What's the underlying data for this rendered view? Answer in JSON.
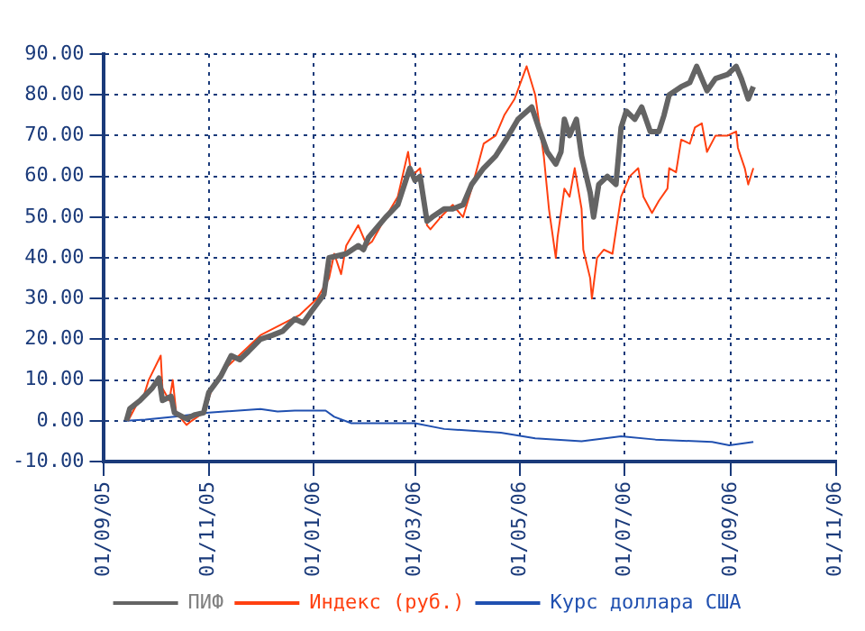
{
  "chart_data": {
    "type": "line",
    "series": [
      {
        "name": "ПИФ",
        "color": "#646464",
        "x": [
          "2005-09-14",
          "2005-09-16",
          "2005-09-22",
          "2005-09-29",
          "2005-10-03",
          "2005-10-05",
          "2005-10-10",
          "2005-10-12",
          "2005-10-19",
          "2005-10-24",
          "2005-10-29",
          "2005-11-01",
          "2005-11-08",
          "2005-11-14",
          "2005-11-19",
          "2005-11-24",
          "2005-12-01",
          "2005-12-08",
          "2005-12-14",
          "2005-12-21",
          "2005-12-26",
          "2005-12-31",
          "2006-01-07",
          "2006-01-10",
          "2006-01-20",
          "2006-01-27",
          "2006-01-30",
          "2006-02-02",
          "2006-02-12",
          "2006-02-19",
          "2006-02-26",
          "2006-03-01",
          "2006-03-04",
          "2006-03-08",
          "2006-03-11",
          "2006-03-18",
          "2006-03-23",
          "2006-03-29",
          "2006-04-03",
          "2006-04-10",
          "2006-04-17",
          "2006-04-23",
          "2006-04-30",
          "2006-05-08",
          "2006-05-12",
          "2006-05-17",
          "2006-05-22",
          "2006-05-25",
          "2006-05-27",
          "2006-05-30",
          "2006-06-03",
          "2006-06-06",
          "2006-06-11",
          "2006-06-13",
          "2006-06-16",
          "2006-06-21",
          "2006-06-26",
          "2006-06-29",
          "2006-07-02",
          "2006-07-07",
          "2006-07-11",
          "2006-07-16",
          "2006-07-21",
          "2006-07-24",
          "2006-07-27",
          "2006-08-03",
          "2006-08-08",
          "2006-08-12",
          "2006-08-18",
          "2006-08-23",
          "2006-08-30",
          "2006-09-04",
          "2006-09-07",
          "2006-09-11",
          "2006-09-14"
        ],
        "values": [
          0,
          3,
          5,
          8,
          10.5,
          5,
          6,
          2,
          0.5,
          1.5,
          2,
          7,
          11,
          16,
          15,
          17,
          20,
          21,
          22,
          25,
          24,
          27,
          31,
          40,
          41,
          43,
          42,
          45,
          50,
          53,
          62,
          59,
          60,
          49,
          50,
          52,
          52,
          53,
          58,
          62,
          65,
          69,
          74,
          77,
          72,
          66,
          63,
          66,
          74,
          70,
          74,
          65,
          56,
          50,
          58,
          60,
          58,
          72,
          76,
          74,
          77,
          71,
          71,
          75,
          80,
          82,
          83,
          87,
          81,
          84,
          85,
          87,
          84,
          79,
          82
        ]
      },
      {
        "name": "Индекс (руб.)",
        "color": "#ff4010",
        "x": [
          "2005-09-15",
          "2005-09-20",
          "2005-09-24",
          "2005-09-27",
          "2005-10-04",
          "2005-10-05",
          "2005-10-09",
          "2005-10-11",
          "2005-10-13",
          "2005-10-19",
          "2005-10-22",
          "2005-10-29",
          "2005-11-03",
          "2005-11-11",
          "2005-11-16",
          "2005-12-01",
          "2005-12-14",
          "2005-12-24",
          "2006-01-03",
          "2006-01-10",
          "2006-01-13",
          "2006-01-17",
          "2006-01-20",
          "2006-01-27",
          "2006-02-01",
          "2006-02-04",
          "2006-02-12",
          "2006-02-19",
          "2006-02-25",
          "2006-02-27",
          "2006-03-04",
          "2006-03-08",
          "2006-03-10",
          "2006-03-16",
          "2006-03-23",
          "2006-03-29",
          "2006-04-03",
          "2006-04-10",
          "2006-04-17",
          "2006-04-22",
          "2006-04-28",
          "2006-05-05",
          "2006-05-10",
          "2006-05-15",
          "2006-05-18",
          "2006-05-22",
          "2006-05-23",
          "2006-05-27",
          "2006-05-30",
          "2006-06-02",
          "2006-06-06",
          "2006-06-07",
          "2006-06-11",
          "2006-06-12",
          "2006-06-15",
          "2006-06-19",
          "2006-06-24",
          "2006-06-29",
          "2006-07-04",
          "2006-07-09",
          "2006-07-12",
          "2006-07-17",
          "2006-07-21",
          "2006-07-26",
          "2006-07-27",
          "2006-07-31",
          "2006-08-03",
          "2006-08-08",
          "2006-08-11",
          "2006-08-15",
          "2006-08-18",
          "2006-08-23",
          "2006-08-30",
          "2006-09-04",
          "2006-09-05",
          "2006-09-09",
          "2006-09-11",
          "2006-09-14"
        ],
        "values": [
          0,
          4,
          6,
          10,
          16,
          8,
          5,
          10,
          2,
          -1,
          0,
          2,
          8,
          13,
          15,
          21,
          null,
          26,
          30,
          35,
          41,
          36,
          43,
          48,
          43,
          44,
          50,
          55,
          66,
          60,
          62,
          48,
          47,
          50,
          53,
          50,
          57,
          68,
          70,
          75,
          79,
          87,
          80,
          65,
          52,
          40,
          45,
          57,
          55,
          62,
          52,
          42,
          35,
          30,
          40,
          42,
          41,
          55,
          60,
          62,
          55,
          51,
          54,
          57,
          62,
          61,
          69,
          68,
          72,
          73,
          66,
          70,
          70,
          71,
          67,
          62,
          58,
          62
        ]
      },
      {
        "name": "Курс доллара США",
        "color": "#2050b0",
        "x": [
          "2005-09-14",
          "2005-09-25",
          "2005-10-12",
          "2005-11-01",
          "2005-12-01",
          "2005-12-11",
          "2005-12-21",
          "2006-01-08",
          "2006-01-13",
          "2006-01-23",
          "2006-03-01",
          "2006-03-18",
          "2006-04-20",
          "2006-05-10",
          "2006-06-06",
          "2006-06-29",
          "2006-07-19",
          "2006-08-21",
          "2006-08-31",
          "2006-09-14"
        ],
        "values": [
          0,
          0.3,
          1,
          2,
          2.9,
          2.3,
          2.5,
          2.5,
          1,
          -0.6,
          -0.6,
          -2,
          -2.9,
          -4.3,
          -5,
          -3.8,
          -4.6,
          -5.2,
          -6,
          -5.2
        ]
      }
    ],
    "xlim": [
      "2005-09-01",
      "2006-11-01"
    ],
    "xticks": [
      {
        "value": "2005-09-01",
        "label": "01/09/05"
      },
      {
        "value": "2005-11-01",
        "label": "01/11/05"
      },
      {
        "value": "2006-01-01",
        "label": "01/01/06"
      },
      {
        "value": "2006-03-01",
        "label": "01/03/06"
      },
      {
        "value": "2006-05-01",
        "label": "01/05/06"
      },
      {
        "value": "2006-07-01",
        "label": "01/07/06"
      },
      {
        "value": "2006-09-01",
        "label": "01/09/06"
      },
      {
        "value": "2006-11-01",
        "label": "01/11/06"
      }
    ],
    "ylim": [
      -10,
      90
    ],
    "yticks": [
      {
        "value": -10,
        "label": "-10.00"
      },
      {
        "value": 0,
        "label": "0.00"
      },
      {
        "value": 10,
        "label": "10.00"
      },
      {
        "value": 20,
        "label": "20.00"
      },
      {
        "value": 30,
        "label": "30.00"
      },
      {
        "value": 40,
        "label": "40.00"
      },
      {
        "value": 50,
        "label": "50.00"
      },
      {
        "value": 60,
        "label": "60.00"
      },
      {
        "value": 70,
        "label": "70.00"
      },
      {
        "value": 80,
        "label": "80.00"
      },
      {
        "value": 90,
        "label": "90.00"
      }
    ],
    "grid": true,
    "legend": "bottom",
    "marker": "none",
    "line_style": "solid"
  }
}
